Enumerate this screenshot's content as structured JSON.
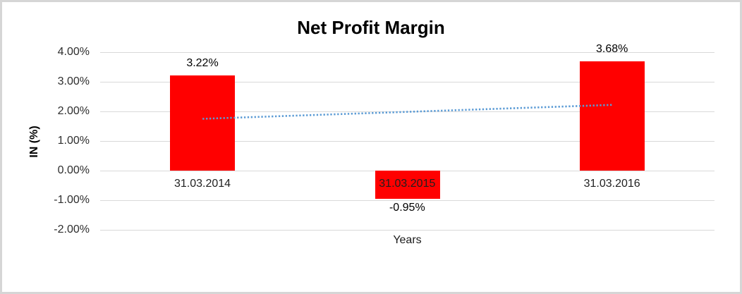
{
  "chart_data": {
    "type": "bar",
    "title": "Net Profit Margin",
    "xlabel": "Years",
    "ylabel": "IN (%)",
    "categories": [
      "31.03.2014",
      "31.03.2015",
      "31.03.2016"
    ],
    "values": [
      3.22,
      -0.95,
      3.68
    ],
    "value_labels": [
      "3.22%",
      "-0.95%",
      "3.68%"
    ],
    "yticks": [
      {
        "value": 4,
        "label": "4.00%"
      },
      {
        "value": 3,
        "label": "3.00%"
      },
      {
        "value": 2,
        "label": "2.00%"
      },
      {
        "value": 1,
        "label": "1.00%"
      },
      {
        "value": 0,
        "label": "0.00%"
      },
      {
        "value": -1,
        "label": "-1.00%"
      },
      {
        "value": -2,
        "label": "-2.00%"
      }
    ],
    "ylim": [
      -2,
      4
    ],
    "grid": true,
    "legend": "none",
    "bar_color": "#FF0000",
    "gridline_color": "#D9D9D9",
    "background_color": "#FFFFFF",
    "border_color": "#D6D6D6",
    "trendline": {
      "style": "dotted",
      "color": "#5B9BD5",
      "points": [
        {
          "category_index": 0,
          "value": 1.75
        },
        {
          "category_index": 2,
          "value": 2.22
        }
      ]
    }
  }
}
